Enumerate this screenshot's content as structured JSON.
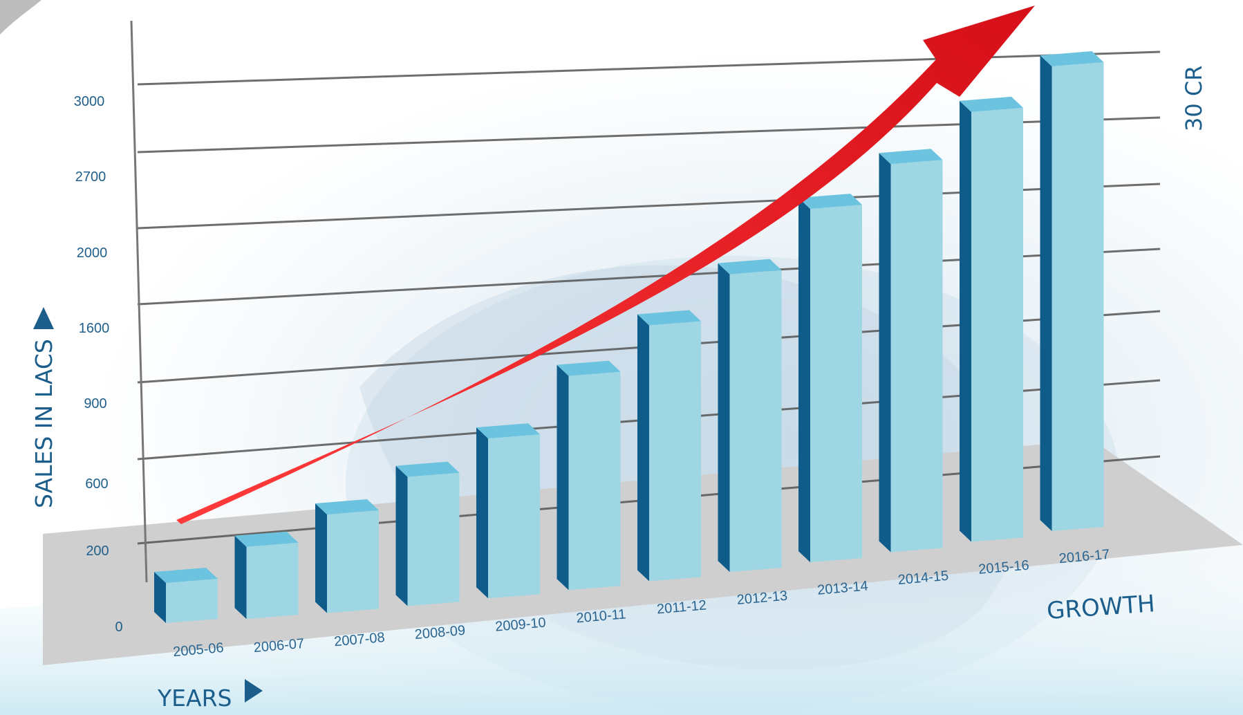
{
  "chart_data": {
    "type": "bar",
    "title": "",
    "xlabel": "YEARS",
    "ylabel": "SALES IN LACS",
    "annotation_right": "30 CR",
    "annotation_growth": "GROWTH",
    "y_ticks": [
      "0",
      "200",
      "600",
      "900",
      "1600",
      "2000",
      "2700",
      "3000"
    ],
    "categories": [
      "2005-06",
      "2006-07",
      "2007-08",
      "2008-09",
      "2009-10",
      "2010-11",
      "2011-12",
      "2012-13",
      "2013-14",
      "2014-15",
      "2015-16",
      "2016-17"
    ],
    "values": [
      100,
      330,
      520,
      740,
      960,
      1350,
      1650,
      1950,
      2350,
      2600,
      2900,
      3150
    ],
    "ylim": [
      0,
      3200
    ],
    "grid": true,
    "legend": "none",
    "colors": {
      "bar_front": "#9fd6e4",
      "bar_side": "#0f5c8a",
      "bar_top": "#6cc3df",
      "floor": "#cfcfcf",
      "gridline": "#555555",
      "trend_arrow": "#e3141e",
      "text": "#1b5e8c"
    }
  }
}
